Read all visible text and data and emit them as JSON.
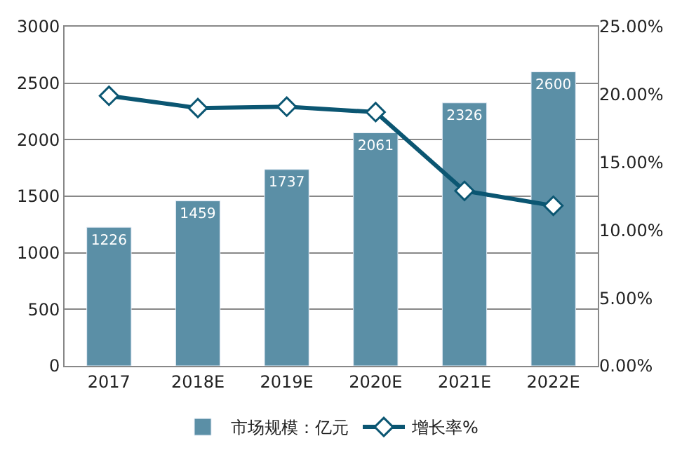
{
  "chart_data": {
    "type": "bar",
    "categories": [
      "2017",
      "2018E",
      "2019E",
      "2020E",
      "2021E",
      "2022E"
    ],
    "series": [
      {
        "name": "市场规模：亿元",
        "color": "#5b8fa6",
        "values": [
          1226,
          1459,
          1737,
          2061,
          2326,
          2600
        ],
        "data_labels": true
      },
      {
        "name": "增长率%",
        "type": "line",
        "axis": "y2",
        "color": "#0b5672",
        "values": [
          19.9,
          19.0,
          19.1,
          18.7,
          12.9,
          11.8
        ],
        "marker": "diamond"
      }
    ],
    "ylim": [
      0,
      3000
    ],
    "yticks": [
      0,
      500,
      1000,
      1500,
      2000,
      2500,
      3000
    ],
    "y2lim": [
      0,
      25
    ],
    "y2ticks": [
      {
        "value": 0,
        "label": "0.00%"
      },
      {
        "value": 5,
        "label": "5.00%"
      },
      {
        "value": 10,
        "label": "10.00%"
      },
      {
        "value": 15,
        "label": "15.00%"
      },
      {
        "value": 20,
        "label": "20.00%"
      },
      {
        "value": 25,
        "label": "25.00%"
      }
    ],
    "grid": "y",
    "legend": "bottom"
  }
}
